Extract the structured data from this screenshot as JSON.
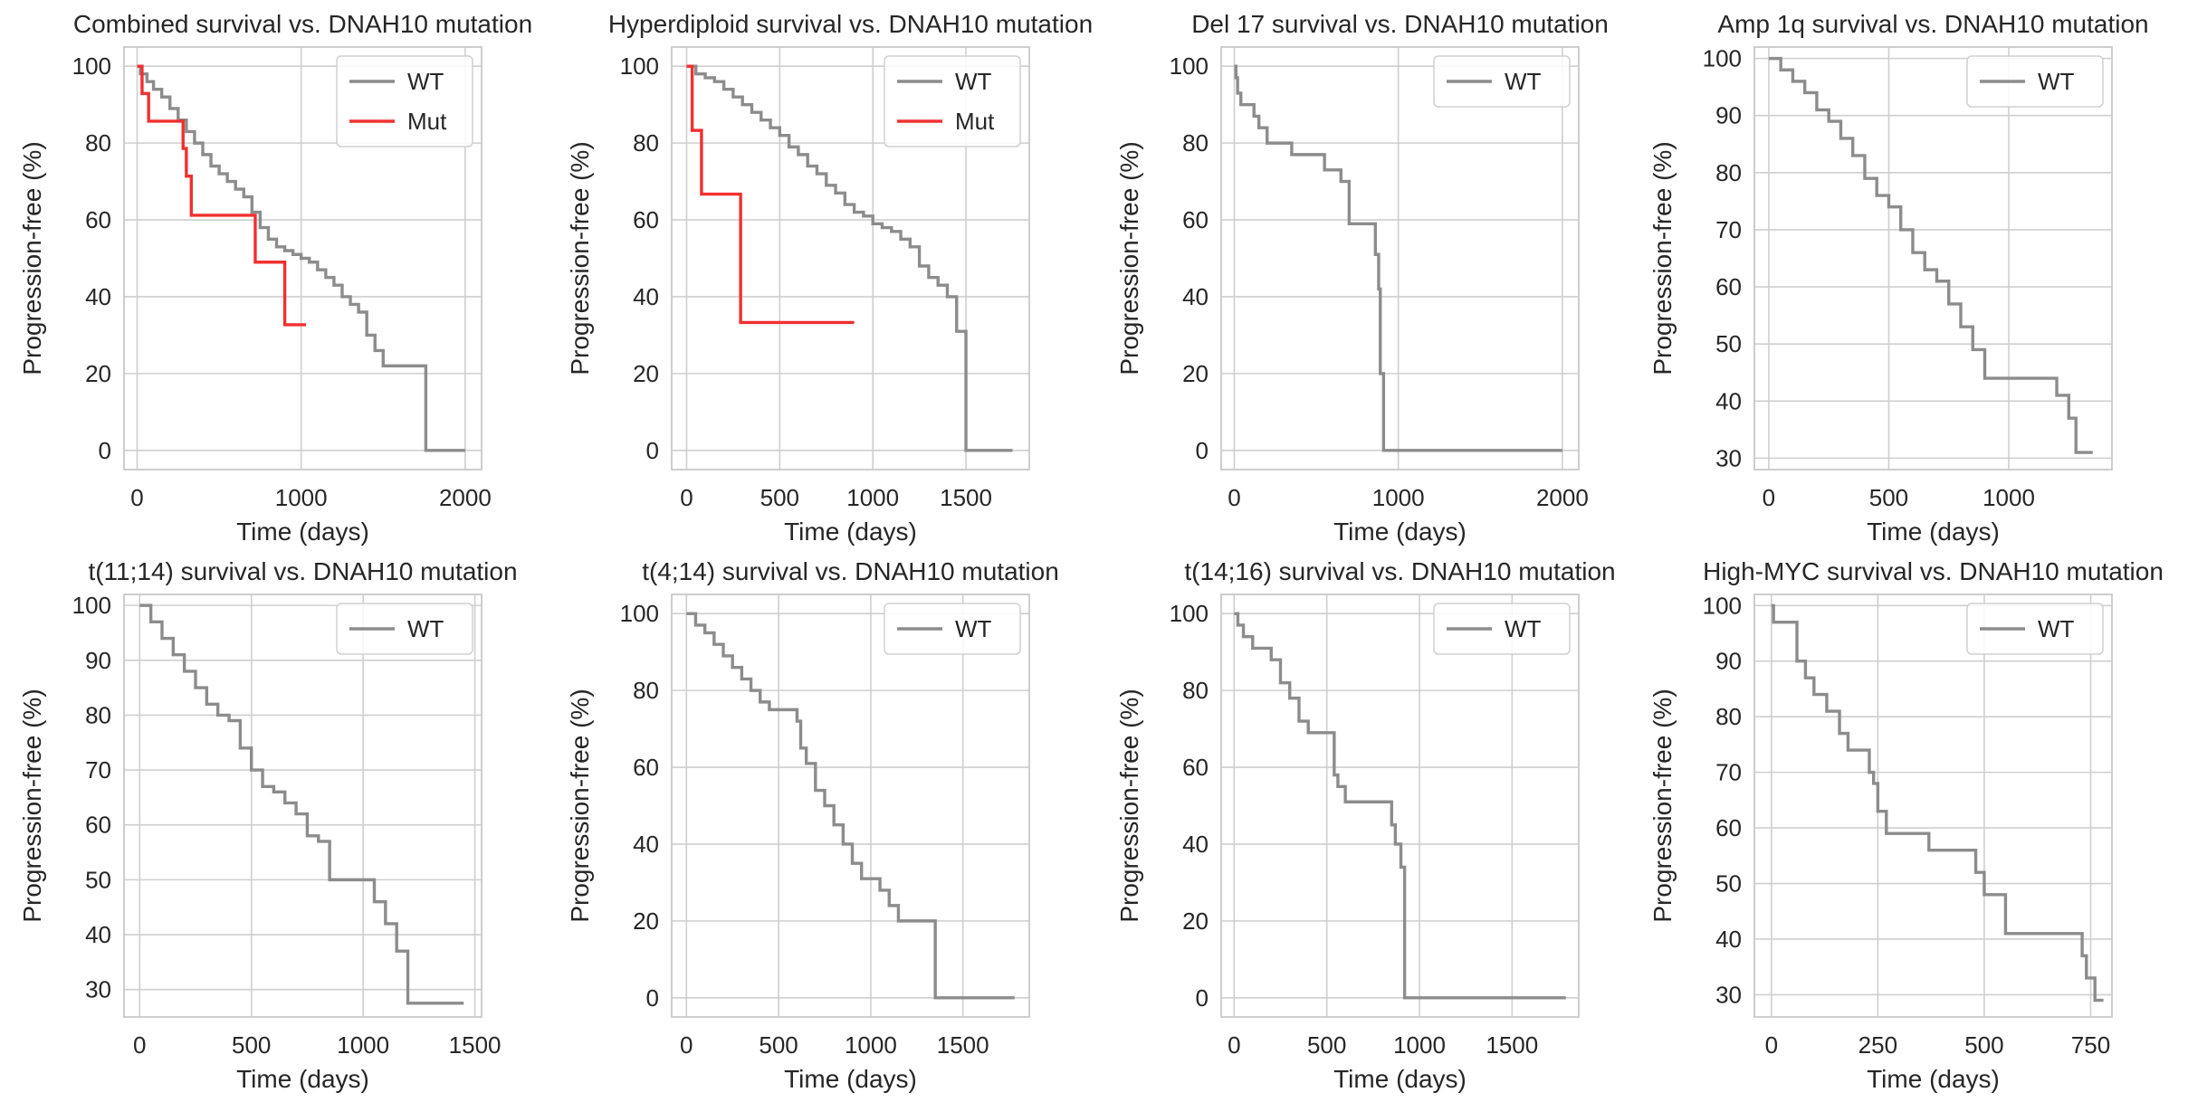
{
  "colors": {
    "wt": "#8c8c8c",
    "mut": "#f03030",
    "grid": "#cfcfcf",
    "frame": "#c8c8c8",
    "text": "#262626"
  },
  "legend_labels": {
    "wt": "WT",
    "mut": "Mut"
  },
  "chart_data": [
    {
      "type": "line",
      "title": "Combined survival vs. DNAH10 mutation",
      "xlabel": "Time (days)",
      "ylabel": "Progression-free (%)",
      "xlim": [
        -80,
        2100
      ],
      "ylim": [
        -5,
        105
      ],
      "xticks": [
        0,
        1000,
        2000
      ],
      "yticks": [
        0,
        20,
        40,
        60,
        80,
        100
      ],
      "legend": "top-right",
      "series": [
        {
          "name": "WT",
          "x": [
            0,
            20,
            60,
            100,
            150,
            200,
            250,
            300,
            350,
            400,
            450,
            500,
            550,
            600,
            650,
            700,
            750,
            800,
            850,
            900,
            950,
            1000,
            1050,
            1100,
            1150,
            1200,
            1250,
            1300,
            1350,
            1400,
            1450,
            1500,
            1600,
            1700,
            1760,
            1800,
            1900,
            2000
          ],
          "y": [
            100,
            98,
            96,
            94,
            92,
            89,
            86,
            83,
            80,
            77,
            74,
            72,
            70,
            68,
            66,
            62,
            58,
            55,
            53,
            52,
            51,
            50,
            49,
            47,
            45,
            43,
            40,
            38,
            36,
            30,
            26,
            22,
            22,
            22,
            0,
            0,
            0,
            0
          ]
        },
        {
          "name": "Mut",
          "x": [
            0,
            30,
            70,
            280,
            300,
            330,
            350,
            720,
            740,
            900,
            920,
            1030
          ],
          "y": [
            100,
            92.9,
            85.7,
            78.6,
            71.4,
            61.2,
            61.2,
            49,
            49,
            32.7,
            32.7,
            32.7
          ]
        }
      ]
    },
    {
      "type": "line",
      "title": "Hyperdiploid survival vs. DNAH10 mutation",
      "xlabel": "Time (days)",
      "ylabel": "Progression-free (%)",
      "xlim": [
        -80,
        1840
      ],
      "ylim": [
        -5,
        105
      ],
      "xticks": [
        0,
        500,
        1000,
        1500
      ],
      "yticks": [
        0,
        20,
        40,
        60,
        80,
        100
      ],
      "legend": "top-right",
      "series": [
        {
          "name": "WT",
          "x": [
            0,
            50,
            100,
            150,
            200,
            250,
            300,
            350,
            400,
            450,
            500,
            550,
            600,
            650,
            700,
            750,
            800,
            850,
            900,
            950,
            1000,
            1050,
            1100,
            1150,
            1200,
            1250,
            1300,
            1350,
            1400,
            1450,
            1490,
            1500,
            1600,
            1750
          ],
          "y": [
            100,
            98,
            97,
            96,
            94,
            92,
            90,
            88,
            86,
            84,
            82,
            79,
            77,
            74,
            72,
            69,
            67,
            64,
            62,
            61,
            59,
            58,
            57,
            55,
            53,
            48,
            45,
            43,
            40,
            31,
            31,
            0,
            0,
            0
          ]
        },
        {
          "name": "Mut",
          "x": [
            0,
            30,
            80,
            290,
            900
          ],
          "y": [
            100,
            83.3,
            66.7,
            33.3,
            33.3
          ]
        }
      ]
    },
    {
      "type": "line",
      "title": "Del 17 survival vs. DNAH10 mutation",
      "xlabel": "Time (days)",
      "ylabel": "Progression-free (%)",
      "xlim": [
        -80,
        2100
      ],
      "ylim": [
        -5,
        105
      ],
      "xticks": [
        0,
        1000,
        2000
      ],
      "yticks": [
        0,
        20,
        40,
        60,
        80,
        100
      ],
      "legend": "top-right",
      "series": [
        {
          "name": "WT",
          "x": [
            0,
            10,
            20,
            40,
            60,
            120,
            150,
            200,
            350,
            500,
            550,
            650,
            700,
            850,
            860,
            880,
            890,
            910,
            1000,
            1500,
            2000
          ],
          "y": [
            100,
            97,
            93,
            90,
            90,
            87,
            84,
            80,
            77,
            77,
            73,
            70,
            59,
            59,
            51,
            42,
            20,
            0,
            0,
            0,
            0
          ]
        }
      ]
    },
    {
      "type": "line",
      "title": "Amp 1q survival vs. DNAH10 mutation",
      "xlabel": "Time (days)",
      "ylabel": "Progression-free (%)",
      "xlim": [
        -60,
        1430
      ],
      "ylim": [
        28,
        102
      ],
      "xticks": [
        0,
        500,
        1000
      ],
      "yticks": [
        30,
        40,
        50,
        60,
        70,
        80,
        90,
        100
      ],
      "legend": "top-right",
      "series": [
        {
          "name": "WT",
          "x": [
            0,
            50,
            100,
            150,
            200,
            250,
            300,
            350,
            400,
            450,
            500,
            550,
            600,
            650,
            700,
            750,
            800,
            850,
            900,
            950,
            1000,
            1100,
            1150,
            1200,
            1250,
            1280,
            1350
          ],
          "y": [
            100,
            98,
            96,
            94,
            91,
            89,
            86,
            83,
            79,
            76,
            74,
            70,
            66,
            63,
            61,
            57,
            53,
            49,
            44,
            44,
            44,
            44,
            44,
            41,
            37,
            31,
            31
          ]
        }
      ]
    },
    {
      "type": "line",
      "title": "t(11;14) survival vs. DNAH10 mutation",
      "xlabel": "Time (days)",
      "ylabel": "Progression-free (%)",
      "xlim": [
        -70,
        1530
      ],
      "ylim": [
        25,
        102
      ],
      "xticks": [
        0,
        500,
        1000,
        1500
      ],
      "yticks": [
        30,
        40,
        50,
        60,
        70,
        80,
        90,
        100
      ],
      "legend": "top-right",
      "series": [
        {
          "name": "WT",
          "x": [
            0,
            50,
            100,
            150,
            200,
            250,
            300,
            350,
            400,
            450,
            500,
            550,
            600,
            650,
            700,
            750,
            800,
            850,
            900,
            1000,
            1050,
            1100,
            1150,
            1200,
            1450
          ],
          "y": [
            100,
            97,
            94,
            91,
            88,
            85,
            82,
            80,
            79,
            74,
            70,
            67,
            66,
            64,
            62,
            58,
            57,
            50,
            50,
            50,
            46,
            42,
            37,
            27.5,
            27.5
          ]
        }
      ]
    },
    {
      "type": "line",
      "title": "t(4;14) survival vs. DNAH10 mutation",
      "xlabel": "Time (days)",
      "ylabel": "Progression-free (%)",
      "xlim": [
        -80,
        1860
      ],
      "ylim": [
        -5,
        105
      ],
      "xticks": [
        0,
        500,
        1000,
        1500
      ],
      "yticks": [
        0,
        20,
        40,
        60,
        80,
        100
      ],
      "legend": "top-right",
      "series": [
        {
          "name": "WT",
          "x": [
            0,
            50,
            100,
            150,
            200,
            250,
            300,
            350,
            400,
            450,
            500,
            550,
            600,
            620,
            650,
            700,
            750,
            800,
            850,
            900,
            950,
            1000,
            1050,
            1100,
            1150,
            1200,
            1300,
            1350,
            1500,
            1780
          ],
          "y": [
            100,
            97,
            95,
            92,
            89,
            86,
            83,
            80,
            77,
            75,
            75,
            75,
            72,
            65,
            61,
            54,
            50,
            45,
            40,
            35,
            31,
            31,
            28,
            24,
            20,
            20,
            20,
            0,
            0,
            0
          ]
        }
      ]
    },
    {
      "type": "line",
      "title": "t(14;16) survival vs. DNAH10 mutation",
      "xlabel": "Time (days)",
      "ylabel": "Progression-free (%)",
      "xlim": [
        -70,
        1860
      ],
      "ylim": [
        -5,
        105
      ],
      "xticks": [
        0,
        500,
        1000,
        1500
      ],
      "yticks": [
        0,
        20,
        40,
        60,
        80,
        100
      ],
      "legend": "top-right",
      "series": [
        {
          "name": "WT",
          "x": [
            0,
            20,
            50,
            100,
            200,
            250,
            300,
            350,
            400,
            500,
            540,
            560,
            600,
            800,
            850,
            870,
            900,
            920,
            1000,
            1500,
            1790
          ],
          "y": [
            100,
            97,
            94,
            91,
            88,
            82,
            78,
            72,
            69,
            69,
            58,
            55,
            51,
            51,
            45,
            40,
            34,
            0,
            0,
            0,
            0
          ]
        }
      ]
    },
    {
      "type": "line",
      "title": "High-MYC survival vs. DNAH10 mutation",
      "xlabel": "Time (days)",
      "ylabel": "Progression-free (%)",
      "xlim": [
        -40,
        800
      ],
      "ylim": [
        26,
        102
      ],
      "xticks": [
        0,
        250,
        500,
        750
      ],
      "yticks": [
        30,
        40,
        50,
        60,
        70,
        80,
        90,
        100
      ],
      "legend": "top-right",
      "series": [
        {
          "name": "WT",
          "x": [
            0,
            5,
            50,
            60,
            80,
            100,
            130,
            160,
            180,
            230,
            240,
            250,
            270,
            300,
            370,
            450,
            480,
            500,
            550,
            600,
            700,
            730,
            740,
            760,
            780
          ],
          "y": [
            100,
            97,
            97,
            90,
            87,
            84,
            81,
            77,
            74,
            70,
            68,
            63,
            59,
            59,
            56,
            56,
            52,
            48,
            41,
            41,
            41,
            37,
            33,
            29,
            29
          ]
        }
      ]
    }
  ]
}
